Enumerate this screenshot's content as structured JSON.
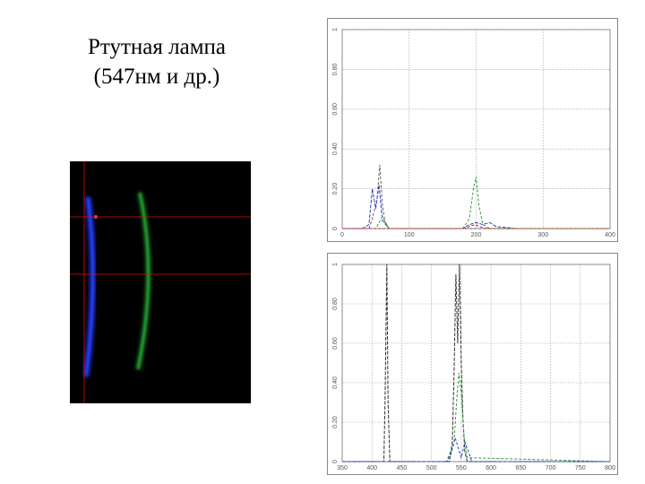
{
  "title": {
    "line1": "Ртутная лампа",
    "line2": "(547нм и др.)"
  },
  "colors": {
    "background": "#ffffff",
    "spectrum_bg": "#000000",
    "crosshair": "#d01010",
    "blue_arc": "#1a2fd0",
    "green_arc": "#1f8a2a",
    "grid": "#999999"
  },
  "chart_data": [
    {
      "type": "line",
      "title": "",
      "xlim": [
        0,
        400
      ],
      "ylim": [
        0,
        1
      ],
      "x_ticks": [
        "0",
        "100",
        "200",
        "300",
        "400"
      ],
      "y_ticks": [
        "0",
        "0.20",
        "0.40",
        "0.60",
        "0.80",
        "1"
      ],
      "grid": true,
      "series": [
        {
          "color": "#3040c0",
          "x": [
            0,
            30,
            40,
            45,
            50,
            55,
            60,
            70,
            100,
            180,
            190,
            200,
            210,
            220,
            230,
            260,
            400
          ],
          "y": [
            0,
            0,
            0.02,
            0.2,
            0.1,
            0.22,
            0.04,
            0,
            0,
            0,
            0.02,
            0.03,
            0.02,
            0.03,
            0.01,
            0,
            0
          ]
        },
        {
          "color": "#606060",
          "x": [
            0,
            40,
            45,
            52,
            56,
            60,
            64,
            70,
            100,
            200,
            400
          ],
          "y": [
            0,
            0,
            0.05,
            0.15,
            0.32,
            0.12,
            0.03,
            0,
            0,
            0,
            0
          ]
        },
        {
          "color": "#2ea03a",
          "x": [
            0,
            50,
            60,
            70,
            180,
            190,
            196,
            200,
            204,
            210,
            220,
            400
          ],
          "y": [
            0,
            0,
            0.06,
            0,
            0,
            0.05,
            0.2,
            0.26,
            0.12,
            0.02,
            0,
            0
          ]
        },
        {
          "color": "#c02020",
          "x": [
            0,
            180,
            190,
            198,
            205,
            215,
            400
          ],
          "y": [
            0,
            0,
            0.01,
            0.02,
            0.01,
            0,
            0
          ]
        }
      ]
    },
    {
      "type": "line",
      "title": "",
      "xlim": [
        350,
        800
      ],
      "ylim": [
        0,
        1
      ],
      "x_ticks": [
        "350",
        "400",
        "450",
        "500",
        "550",
        "600",
        "650",
        "700",
        "750",
        "800"
      ],
      "y_ticks": [
        "0",
        "0.20",
        "0.40",
        "0.60",
        "0.80",
        "1"
      ],
      "grid": true,
      "series": [
        {
          "color": "#303030",
          "x": [
            350,
            420,
            422,
            425,
            427,
            430,
            530,
            535,
            538,
            541,
            544,
            547,
            550,
            553,
            556,
            560,
            800
          ],
          "y": [
            0,
            0,
            0.3,
            1.0,
            0.3,
            0,
            0,
            0.1,
            0.45,
            0.95,
            0.6,
            1.0,
            0.5,
            0.2,
            0.05,
            0,
            0
          ]
        },
        {
          "color": "#2ea03a",
          "x": [
            350,
            525,
            532,
            538,
            542,
            546,
            550,
            555,
            560,
            800
          ],
          "y": [
            0,
            0,
            0.05,
            0.1,
            0.3,
            0.45,
            0.35,
            0.12,
            0.02,
            0
          ]
        },
        {
          "color": "#3040c0",
          "x": [
            350,
            525,
            532,
            540,
            546,
            550,
            556,
            562,
            568,
            800
          ],
          "y": [
            0,
            0,
            0.03,
            0.12,
            0.06,
            0.02,
            0.1,
            0.05,
            0,
            0
          ]
        }
      ]
    }
  ]
}
